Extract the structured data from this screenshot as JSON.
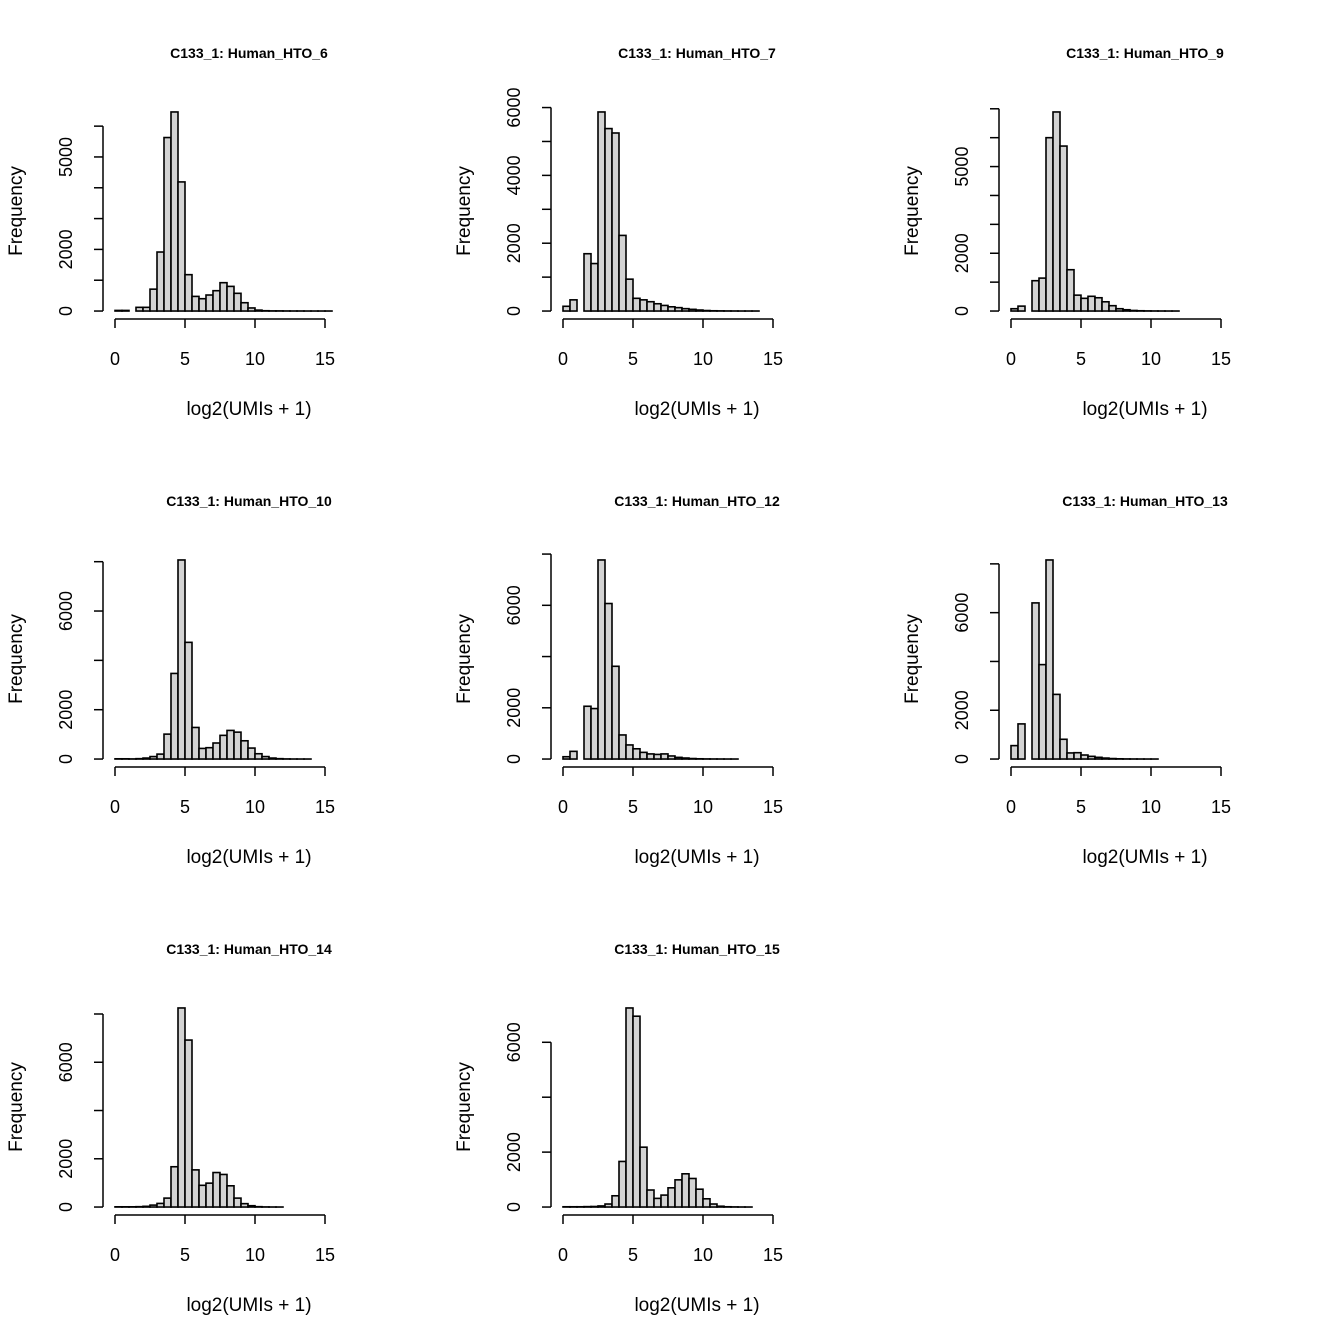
{
  "chart_data": [
    {
      "type": "bar",
      "title": "C133_1: Human_HTO_6",
      "xlabel": "log2(UMIs + 1)",
      "ylabel": "Frequency",
      "bin_width": 0.5,
      "xlim": [
        0,
        19
      ],
      "x_ticks": [
        0,
        5,
        10,
        15
      ],
      "y_ticks": [
        0,
        1000,
        2000,
        3000,
        4000,
        5000,
        6000
      ],
      "y_tick_labels": {
        "0": "0",
        "2000": "2000",
        "5000": "5000"
      },
      "values": [
        20,
        20,
        0,
        120,
        120,
        710,
        1915,
        5630,
        6460,
        4190,
        1180,
        475,
        400,
        520,
        660,
        920,
        800,
        575,
        270,
        100,
        30,
        10,
        5,
        5,
        3,
        2,
        2,
        1,
        1,
        1,
        1,
        0,
        0,
        0,
        0,
        0,
        0,
        0
      ]
    },
    {
      "type": "bar",
      "title": "C133_1: Human_HTO_7",
      "xlabel": "log2(UMIs + 1)",
      "ylabel": "Frequency",
      "bin_width": 0.5,
      "xlim": [
        0,
        19
      ],
      "x_ticks": [
        0,
        5,
        10,
        15
      ],
      "y_ticks": [
        0,
        1000,
        2000,
        3000,
        4000,
        5000,
        6000
      ],
      "y_tick_labels": {
        "0": "0",
        "2000": "2000",
        "4000": "4000",
        "6000": "6000"
      },
      "values": [
        140,
        330,
        0,
        1690,
        1400,
        5870,
        5380,
        5250,
        2230,
        940,
        375,
        330,
        275,
        215,
        165,
        125,
        100,
        70,
        50,
        30,
        15,
        8,
        5,
        3,
        2,
        1,
        1,
        1,
        0,
        0,
        0,
        0,
        0,
        0,
        0,
        0,
        0,
        0
      ]
    },
    {
      "type": "bar",
      "title": "C133_1: Human_HTO_9",
      "xlabel": "log2(UMIs + 1)",
      "ylabel": "Frequency",
      "bin_width": 0.5,
      "xlim": [
        0,
        19
      ],
      "x_ticks": [
        0,
        5,
        10,
        15
      ],
      "y_ticks": [
        0,
        1000,
        2000,
        3000,
        4000,
        5000,
        6000,
        7000
      ],
      "y_tick_labels": {
        "0": "0",
        "2000": "2000",
        "5000": "5000"
      },
      "values": [
        80,
        170,
        0,
        1050,
        1140,
        6000,
        6890,
        5710,
        1430,
        550,
        440,
        510,
        460,
        320,
        185,
        80,
        45,
        20,
        10,
        5,
        3,
        2,
        1,
        1,
        0,
        0,
        0,
        0,
        0,
        0,
        0,
        0,
        0,
        0,
        0,
        0,
        0,
        0
      ]
    },
    {
      "type": "bar",
      "title": "C133_1: Human_HTO_10",
      "xlabel": "log2(UMIs + 1)",
      "ylabel": "Frequency",
      "bin_width": 0.5,
      "xlim": [
        0,
        19
      ],
      "x_ticks": [
        0,
        5,
        10,
        15
      ],
      "y_ticks": [
        0,
        2000,
        4000,
        6000,
        8000
      ],
      "y_tick_labels": {
        "0": "0",
        "2000": "2000",
        "6000": "6000"
      },
      "values": [
        10,
        10,
        5,
        15,
        40,
        100,
        200,
        1010,
        3470,
        8070,
        4730,
        1280,
        430,
        460,
        650,
        960,
        1160,
        1090,
        740,
        445,
        215,
        100,
        40,
        15,
        5,
        2,
        1,
        1,
        0,
        0,
        0,
        0,
        0,
        0,
        0,
        0,
        0,
        0
      ]
    },
    {
      "type": "bar",
      "title": "C133_1: Human_HTO_12",
      "xlabel": "log2(UMIs + 1)",
      "ylabel": "Frequency",
      "bin_width": 0.5,
      "xlim": [
        0,
        19
      ],
      "x_ticks": [
        0,
        5,
        10,
        15
      ],
      "y_ticks": [
        0,
        2000,
        4000,
        6000,
        8000
      ],
      "y_tick_labels": {
        "0": "0",
        "2000": "2000",
        "6000": "6000"
      },
      "values": [
        90,
        300,
        0,
        2060,
        1970,
        7770,
        6070,
        3620,
        940,
        550,
        400,
        260,
        200,
        180,
        200,
        120,
        65,
        40,
        20,
        10,
        5,
        3,
        2,
        1,
        1,
        0,
        0,
        0,
        0,
        0,
        0,
        0,
        0,
        0,
        0,
        0,
        0,
        0
      ]
    },
    {
      "type": "bar",
      "title": "C133_1: Human_HTO_13",
      "xlabel": "log2(UMIs + 1)",
      "ylabel": "Frequency",
      "bin_width": 0.5,
      "xlim": [
        0,
        19
      ],
      "x_ticks": [
        0,
        5,
        10,
        15
      ],
      "y_ticks": [
        0,
        2000,
        4000,
        6000,
        8000
      ],
      "y_tick_labels": {
        "0": "0",
        "2000": "2000",
        "6000": "6000"
      },
      "values": [
        550,
        1440,
        0,
        6400,
        3870,
        8160,
        2650,
        810,
        250,
        260,
        165,
        110,
        70,
        40,
        20,
        10,
        5,
        3,
        2,
        1,
        1,
        0,
        0,
        0,
        0,
        0,
        0,
        0,
        0,
        0,
        0,
        0,
        0,
        0,
        0,
        0,
        0,
        0
      ]
    },
    {
      "type": "bar",
      "title": "C133_1: Human_HTO_14",
      "xlabel": "log2(UMIs + 1)",
      "ylabel": "Frequency",
      "bin_width": 0.5,
      "xlim": [
        0,
        19
      ],
      "x_ticks": [
        0,
        5,
        10,
        15
      ],
      "y_ticks": [
        0,
        2000,
        4000,
        6000,
        8000
      ],
      "y_tick_labels": {
        "0": "0",
        "2000": "2000",
        "6000": "6000"
      },
      "values": [
        10,
        10,
        10,
        15,
        30,
        80,
        150,
        370,
        1670,
        8250,
        6920,
        1540,
        900,
        990,
        1430,
        1350,
        880,
        370,
        140,
        55,
        15,
        5,
        2,
        1,
        0,
        0,
        0,
        0,
        0,
        0,
        0,
        0,
        0,
        0,
        0,
        0,
        0,
        0
      ]
    },
    {
      "type": "bar",
      "title": "C133_1: Human_HTO_15",
      "xlabel": "log2(UMIs + 1)",
      "ylabel": "Frequency",
      "bin_width": 0.5,
      "xlim": [
        0,
        19
      ],
      "x_ticks": [
        0,
        5,
        10,
        15
      ],
      "y_ticks": [
        0,
        2000,
        4000,
        6000
      ],
      "y_tick_labels": {
        "0": "0",
        "2000": "2000",
        "6000": "6000"
      },
      "values": [
        10,
        10,
        10,
        15,
        20,
        40,
        110,
        410,
        1660,
        7250,
        6950,
        2180,
        620,
        315,
        435,
        700,
        990,
        1210,
        1040,
        650,
        300,
        110,
        30,
        10,
        5,
        2,
        1,
        0,
        0,
        0,
        0,
        0,
        0,
        0,
        0,
        0,
        0,
        0
      ]
    }
  ],
  "colors": {
    "bar_fill": "#d3d3d3",
    "bar_stroke": "#000000"
  }
}
